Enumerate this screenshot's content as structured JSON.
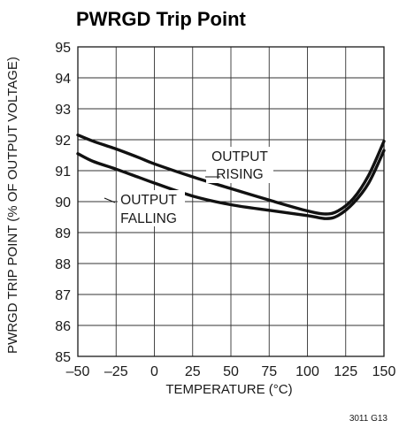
{
  "chart_data": {
    "type": "line",
    "title": "PWRGD Trip Point",
    "xlabel": "TEMPERATURE (°C)",
    "ylabel": "PWRGD TRIP POINT (% OF OUTPUT VOLTAGE)",
    "xlim": [
      -50,
      150
    ],
    "ylim": [
      85,
      95
    ],
    "xticks": [
      -50,
      -25,
      0,
      25,
      50,
      75,
      100,
      125,
      150
    ],
    "xtick_labels": [
      "–50",
      "–25",
      "0",
      "25",
      "50",
      "75",
      "100",
      "125",
      "150"
    ],
    "yticks": [
      85,
      86,
      87,
      88,
      89,
      90,
      91,
      92,
      93,
      94,
      95
    ],
    "ytick_labels": [
      "85",
      "86",
      "87",
      "88",
      "89",
      "90",
      "91",
      "92",
      "93",
      "94",
      "95"
    ],
    "grid": true,
    "series": [
      {
        "name": "OUTPUT RISING",
        "x": [
          -50,
          -40,
          -25,
          -10,
          0,
          25,
          50,
          75,
          100,
          112,
          120,
          130,
          140,
          150
        ],
        "y": [
          92.15,
          91.95,
          91.7,
          91.42,
          91.22,
          90.8,
          90.42,
          90.05,
          89.7,
          89.6,
          89.7,
          90.1,
          90.85,
          91.95
        ]
      },
      {
        "name": "OUTPUT FALLING",
        "x": [
          -50,
          -40,
          -25,
          -10,
          0,
          25,
          50,
          75,
          100,
          112,
          120,
          130,
          140,
          150
        ],
        "y": [
          91.55,
          91.3,
          91.05,
          90.78,
          90.6,
          90.18,
          89.9,
          89.72,
          89.55,
          89.45,
          89.55,
          89.95,
          90.6,
          91.65
        ]
      }
    ],
    "annotations": [
      {
        "lines": [
          "OUTPUT",
          "RISING"
        ]
      },
      {
        "lines": [
          "OUTPUT",
          "FALLING"
        ]
      }
    ],
    "figure_id": "3011 G13"
  }
}
